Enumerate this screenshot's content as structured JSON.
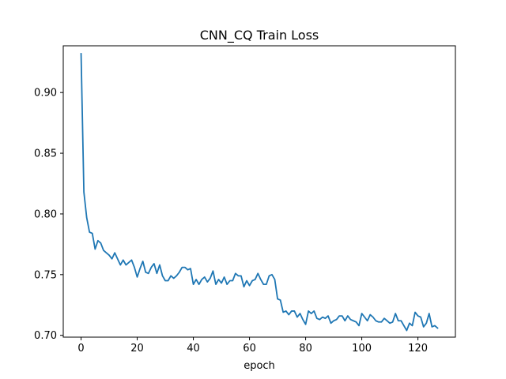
{
  "chart_data": {
    "type": "line",
    "title": "CNN_CQ Train Loss",
    "xlabel": "epoch",
    "ylabel": "",
    "xlim": [
      -6.35,
      133.35
    ],
    "ylim": [
      0.6985,
      0.9385
    ],
    "xticks": [
      0,
      20,
      40,
      60,
      80,
      100,
      120
    ],
    "yticks": [
      0.7,
      0.75,
      0.8,
      0.85,
      0.9
    ],
    "ytick_labels": [
      "0.70",
      "0.75",
      "0.80",
      "0.85",
      "0.90"
    ],
    "grid": false,
    "series": [
      {
        "name": "",
        "color": "#1f77b4",
        "x": [
          0,
          1,
          2,
          3,
          4,
          5,
          6,
          7,
          8,
          9,
          10,
          11,
          12,
          13,
          14,
          15,
          16,
          17,
          18,
          19,
          20,
          21,
          22,
          23,
          24,
          25,
          26,
          27,
          28,
          29,
          30,
          31,
          32,
          33,
          34,
          35,
          36,
          37,
          38,
          39,
          40,
          41,
          42,
          43,
          44,
          45,
          46,
          47,
          48,
          49,
          50,
          51,
          52,
          53,
          54,
          55,
          56,
          57,
          58,
          59,
          60,
          61,
          62,
          63,
          64,
          65,
          66,
          67,
          68,
          69,
          70,
          71,
          72,
          73,
          74,
          75,
          76,
          77,
          78,
          79,
          80,
          81,
          82,
          83,
          84,
          85,
          86,
          87,
          88,
          89,
          90,
          91,
          92,
          93,
          94,
          95,
          96,
          97,
          98,
          99,
          100,
          101,
          102,
          103,
          104,
          105,
          106,
          107,
          108,
          109,
          110,
          111,
          112,
          113,
          114,
          115,
          116,
          117,
          118,
          119,
          120,
          121,
          122,
          123,
          124,
          125,
          126,
          127
        ],
        "values": [
          0.932,
          0.818,
          0.797,
          0.785,
          0.784,
          0.771,
          0.778,
          0.776,
          0.77,
          0.768,
          0.766,
          0.763,
          0.768,
          0.763,
          0.758,
          0.762,
          0.758,
          0.76,
          0.762,
          0.756,
          0.748,
          0.755,
          0.761,
          0.752,
          0.751,
          0.756,
          0.759,
          0.751,
          0.758,
          0.749,
          0.745,
          0.745,
          0.749,
          0.747,
          0.749,
          0.752,
          0.756,
          0.756,
          0.754,
          0.755,
          0.742,
          0.746,
          0.742,
          0.746,
          0.748,
          0.744,
          0.747,
          0.753,
          0.742,
          0.746,
          0.743,
          0.748,
          0.742,
          0.745,
          0.745,
          0.751,
          0.749,
          0.749,
          0.74,
          0.745,
          0.741,
          0.745,
          0.746,
          0.751,
          0.746,
          0.742,
          0.742,
          0.749,
          0.75,
          0.746,
          0.73,
          0.729,
          0.719,
          0.72,
          0.717,
          0.72,
          0.72,
          0.715,
          0.718,
          0.713,
          0.709,
          0.72,
          0.718,
          0.72,
          0.714,
          0.713,
          0.715,
          0.714,
          0.716,
          0.71,
          0.712,
          0.713,
          0.716,
          0.716,
          0.712,
          0.716,
          0.713,
          0.712,
          0.711,
          0.708,
          0.718,
          0.715,
          0.712,
          0.717,
          0.715,
          0.712,
          0.711,
          0.711,
          0.714,
          0.712,
          0.71,
          0.711,
          0.718,
          0.712,
          0.712,
          0.708,
          0.704,
          0.71,
          0.708,
          0.719,
          0.716,
          0.715,
          0.707,
          0.71,
          0.718,
          0.707,
          0.708,
          0.706
        ]
      }
    ]
  }
}
